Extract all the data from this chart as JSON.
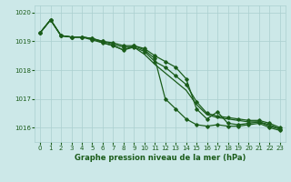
{
  "title": "Graphe pression niveau de la mer (hPa)",
  "x_values": [
    0,
    1,
    2,
    3,
    4,
    5,
    6,
    7,
    8,
    9,
    10,
    11,
    12,
    13,
    14,
    15,
    16,
    17,
    18,
    19,
    20,
    21,
    22,
    23
  ],
  "series": [
    [
      1019.3,
      1019.75,
      1019.2,
      1019.15,
      1019.15,
      1019.05,
      1018.95,
      1018.85,
      1018.7,
      1018.85,
      1018.7,
      1018.4,
      1017.0,
      1016.65,
      1016.3,
      1016.1,
      1016.05,
      1016.1,
      1016.05,
      1016.05,
      1016.1,
      1016.15,
      1016.0,
      1015.9
    ],
    [
      1019.3,
      1019.75,
      1019.2,
      1019.15,
      1019.15,
      1019.1,
      1019.0,
      1018.95,
      1018.85,
      1018.85,
      1018.75,
      1018.5,
      1018.3,
      1018.1,
      1017.7,
      1016.65,
      1016.3,
      1016.55,
      1016.15,
      1016.1,
      1016.15,
      1016.2,
      1016.05,
      1015.95
    ],
    [
      1019.3,
      1019.75,
      1019.2,
      1019.15,
      1019.15,
      1019.1,
      1018.95,
      1018.85,
      1018.7,
      1018.8,
      1018.55,
      1018.2,
      1017.9,
      1017.6,
      1017.3,
      1016.8,
      1016.45,
      1016.35,
      1016.3,
      1016.25,
      1016.2,
      1016.2,
      1016.1,
      1015.95
    ],
    [
      1019.3,
      1019.75,
      1019.2,
      1019.15,
      1019.15,
      1019.1,
      1019.0,
      1018.9,
      1018.8,
      1018.8,
      1018.65,
      1018.3,
      1018.1,
      1017.8,
      1017.5,
      1016.9,
      1016.5,
      1016.4,
      1016.35,
      1016.3,
      1016.25,
      1016.25,
      1016.15,
      1016.0
    ]
  ],
  "series_with_markers": [
    0,
    1,
    3
  ],
  "line_color": "#1a5c1a",
  "bg_color": "#cce8e8",
  "grid_color": "#aacfcf",
  "ylim": [
    1015.5,
    1020.25
  ],
  "yticks": [
    1016,
    1017,
    1018,
    1019,
    1020
  ],
  "xticks": [
    0,
    1,
    2,
    3,
    4,
    5,
    6,
    7,
    8,
    9,
    10,
    11,
    12,
    13,
    14,
    15,
    16,
    17,
    18,
    19,
    20,
    21,
    22,
    23
  ]
}
